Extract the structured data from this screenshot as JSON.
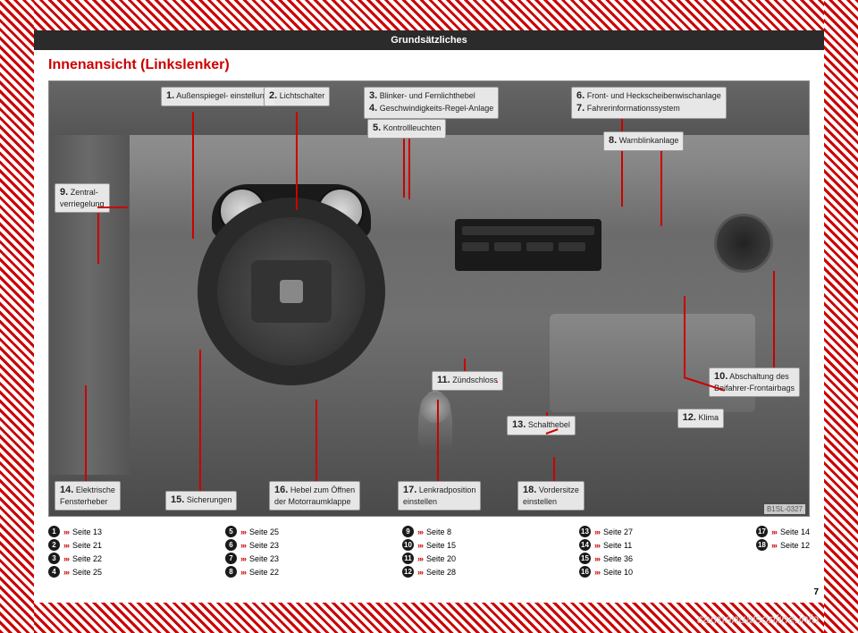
{
  "header": {
    "section": "Grundsätzliches"
  },
  "title": "Innenansicht (Linkslenker)",
  "image_code": "B1SL-0327",
  "page_number": "7",
  "watermark": "carmanualsonline.info",
  "labels": {
    "1": "Außenspiegel-\neinstellung",
    "2": "Lichtschalter",
    "3": "Blinker- und Fernlichthebel",
    "4": "Geschwindigkeits-Regel-Anlage",
    "5": "Kontrollleuchten",
    "6": "Front- und Heckscheibenwischanlage",
    "7": "Fahrerinformationssystem",
    "8": "Warnblinkanlage",
    "9": "Zentral-\nverriegelung",
    "10": "Abschaltung des\nBeifahrer-Frontairbags",
    "11": "Zündschloss",
    "12": "Klima",
    "13": "Schalthebel",
    "14": "Elektrische\nFensterheber",
    "15": "Sicherungen",
    "16": "Hebel zum Öffnen\nder Motorraumklappe",
    "17": "Lenkradposition\neinstellen",
    "18": "Vordersitze\neinstellen"
  },
  "refs": [
    {
      "n": "1",
      "p": "Seite 13"
    },
    {
      "n": "2",
      "p": "Seite 21"
    },
    {
      "n": "3",
      "p": "Seite 22"
    },
    {
      "n": "4",
      "p": "Seite 25"
    },
    {
      "n": "5",
      "p": "Seite 25"
    },
    {
      "n": "6",
      "p": "Seite 23"
    },
    {
      "n": "7",
      "p": "Seite 23"
    },
    {
      "n": "8",
      "p": "Seite 22"
    },
    {
      "n": "9",
      "p": "Seite 8"
    },
    {
      "n": "10",
      "p": "Seite 15"
    },
    {
      "n": "11",
      "p": "Seite 20"
    },
    {
      "n": "12",
      "p": "Seite 28"
    },
    {
      "n": "13",
      "p": "Seite 27"
    },
    {
      "n": "14",
      "p": "Seite 11"
    },
    {
      "n": "15",
      "p": "Seite 36"
    },
    {
      "n": "16",
      "p": "Seite 10"
    },
    {
      "n": "17",
      "p": "Seite 14"
    },
    {
      "n": "18",
      "p": "Seite 12"
    }
  ],
  "chev": "›››"
}
